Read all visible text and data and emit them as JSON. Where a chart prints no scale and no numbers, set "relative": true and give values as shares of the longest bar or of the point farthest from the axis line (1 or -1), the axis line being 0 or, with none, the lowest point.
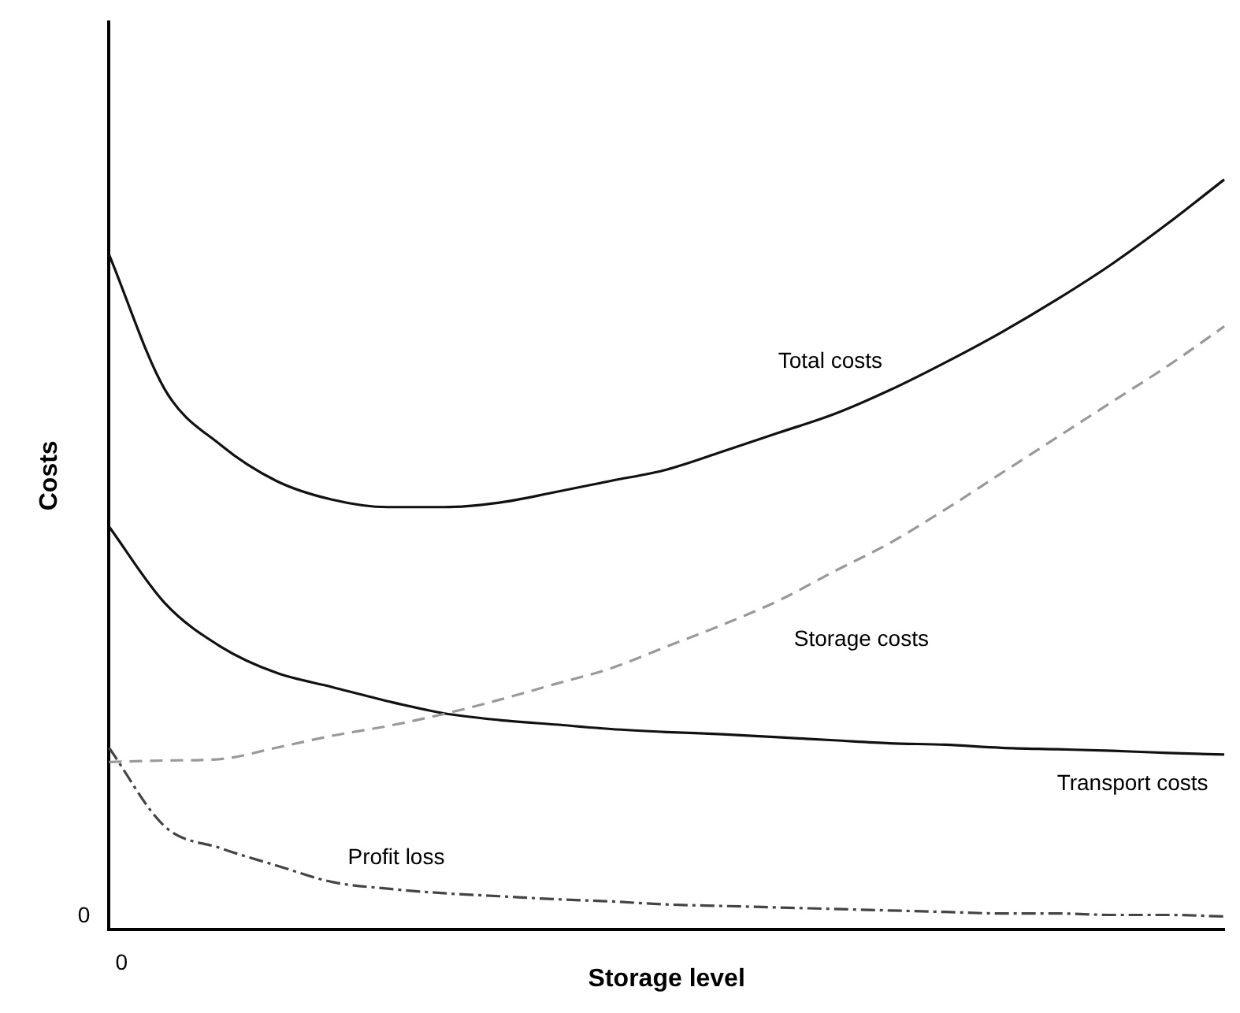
{
  "chart_data": {
    "type": "line",
    "relative": true,
    "xlabel": "Storage level",
    "ylabel": "Costs",
    "annotations": [
      "0",
      "0"
    ],
    "legend": false,
    "grid": false,
    "marker": "none",
    "categories": [
      null,
      null,
      null,
      null,
      null,
      null,
      null,
      null,
      null,
      null,
      null,
      null,
      null,
      null,
      null,
      null,
      null,
      null,
      null,
      null,
      null
    ],
    "series": [
      {
        "name": "Total costs",
        "color": "#111111",
        "line_style": "solid",
        "values": [
          0.9,
          0.72,
          0.646,
          0.598,
          0.573,
          0.563,
          0.563,
          0.569,
          0.583,
          0.598,
          0.613,
          0.637,
          0.662,
          0.687,
          0.719,
          0.756,
          0.796,
          0.84,
          0.888,
          0.942,
          1
        ]
      },
      {
        "name": "Storage costs",
        "color": "#999999",
        "line_style": "dashed",
        "values": [
          0.223,
          0.225,
          0.227,
          0.242,
          0.258,
          0.271,
          0.287,
          0.306,
          0.327,
          0.348,
          0.377,
          0.406,
          0.438,
          0.477,
          0.515,
          0.56,
          0.608,
          0.656,
          0.704,
          0.752,
          0.804
        ]
      },
      {
        "name": "Transport costs",
        "color": "#111111",
        "line_style": "solid",
        "values": [
          0.537,
          0.435,
          0.377,
          0.342,
          0.323,
          0.304,
          0.288,
          0.279,
          0.273,
          0.267,
          0.263,
          0.26,
          0.256,
          0.252,
          0.248,
          0.246,
          0.242,
          0.24,
          0.238,
          0.235,
          0.233
        ]
      },
      {
        "name": "Profit loss",
        "color": "#444444",
        "line_style": "dotted",
        "values": [
          0.242,
          0.137,
          0.108,
          0.085,
          0.063,
          0.054,
          0.048,
          0.044,
          0.04,
          0.037,
          0.033,
          0.031,
          0.029,
          0.027,
          0.025,
          0.023,
          0.021,
          0.021,
          0.019,
          0.019,
          0.017
        ]
      }
    ]
  }
}
